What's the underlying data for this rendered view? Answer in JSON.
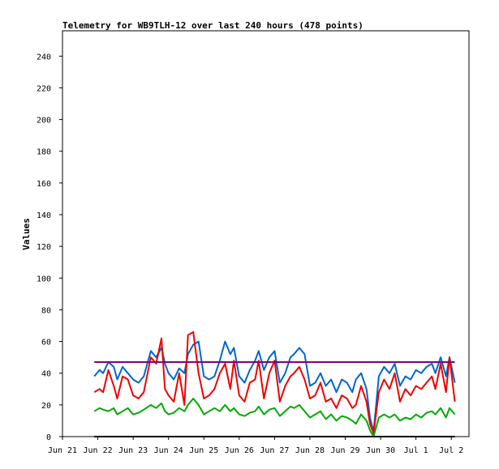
{
  "chart_data": {
    "type": "line",
    "title": "Telemetry for WB9TLH-12 over last 240 hours (478 points)",
    "xlabel": "",
    "ylabel": "Values",
    "x_ticks": [
      "Jun 21",
      "Jun 22",
      "Jun 23",
      "Jun 24",
      "Jun 25",
      "Jun 26",
      "Jun 27",
      "Jun 28",
      "Jun 29",
      "Jun 30",
      "Jul 1",
      "Jul 2"
    ],
    "y_ticks": [
      "0",
      "20",
      "40",
      "60",
      "80",
      "100",
      "120",
      "140",
      "160",
      "180",
      "200",
      "220",
      "240"
    ],
    "xlim_days": [
      0,
      11.5
    ],
    "ylim": [
      0,
      256
    ],
    "grid": false,
    "legend": "none",
    "series": [
      {
        "color": "#0066cc",
        "x": [
          0.9,
          1.05,
          1.15,
          1.3,
          1.45,
          1.55,
          1.7,
          1.85,
          2.0,
          2.15,
          2.3,
          2.5,
          2.65,
          2.8,
          2.9,
          3.0,
          3.15,
          3.3,
          3.45,
          3.55,
          3.7,
          3.85,
          4.0,
          4.15,
          4.3,
          4.45,
          4.6,
          4.75,
          4.85,
          5.0,
          5.15,
          5.3,
          5.45,
          5.55,
          5.7,
          5.85,
          6.0,
          6.15,
          6.3,
          6.45,
          6.55,
          6.7,
          6.85,
          7.0,
          7.15,
          7.3,
          7.45,
          7.6,
          7.75,
          7.9,
          8.05,
          8.2,
          8.3,
          8.45,
          8.6,
          8.7,
          8.8,
          8.95,
          9.1,
          9.25,
          9.4,
          9.55,
          9.7,
          9.85,
          10.0,
          10.15,
          10.3,
          10.45,
          10.55,
          10.7,
          10.85,
          10.95,
          11.1
        ],
        "values": [
          38,
          42,
          40,
          47,
          44,
          36,
          44,
          40,
          36,
          34,
          38,
          54,
          50,
          56,
          46,
          40,
          36,
          43,
          40,
          52,
          58,
          60,
          38,
          36,
          38,
          48,
          60,
          52,
          56,
          38,
          34,
          42,
          48,
          54,
          42,
          50,
          54,
          34,
          40,
          50,
          52,
          56,
          52,
          32,
          34,
          40,
          32,
          36,
          28,
          36,
          34,
          28,
          36,
          40,
          30,
          12,
          3,
          38,
          44,
          40,
          46,
          32,
          38,
          36,
          42,
          40,
          44,
          46,
          40,
          50,
          38,
          50,
          34
        ]
      },
      {
        "color": "#ee0000",
        "x": [
          0.9,
          1.05,
          1.15,
          1.3,
          1.45,
          1.55,
          1.7,
          1.85,
          2.0,
          2.15,
          2.3,
          2.5,
          2.65,
          2.8,
          2.9,
          3.0,
          3.15,
          3.3,
          3.45,
          3.55,
          3.7,
          3.85,
          4.0,
          4.15,
          4.3,
          4.45,
          4.6,
          4.75,
          4.85,
          5.0,
          5.15,
          5.3,
          5.45,
          5.55,
          5.7,
          5.85,
          6.0,
          6.15,
          6.3,
          6.45,
          6.55,
          6.7,
          6.85,
          7.0,
          7.15,
          7.3,
          7.45,
          7.6,
          7.75,
          7.9,
          8.05,
          8.2,
          8.3,
          8.45,
          8.6,
          8.7,
          8.8,
          8.95,
          9.1,
          9.25,
          9.4,
          9.55,
          9.7,
          9.85,
          10.0,
          10.15,
          10.3,
          10.45,
          10.55,
          10.7,
          10.85,
          10.95,
          11.1
        ],
        "values": [
          28,
          30,
          28,
          42,
          32,
          24,
          38,
          36,
          26,
          24,
          28,
          50,
          46,
          62,
          30,
          26,
          22,
          40,
          20,
          64,
          66,
          40,
          24,
          26,
          30,
          40,
          46,
          30,
          48,
          26,
          22,
          34,
          36,
          48,
          24,
          40,
          48,
          22,
          32,
          38,
          40,
          44,
          36,
          24,
          26,
          34,
          22,
          24,
          18,
          26,
          24,
          18,
          20,
          32,
          22,
          8,
          2,
          28,
          36,
          30,
          40,
          22,
          30,
          26,
          32,
          30,
          34,
          38,
          30,
          46,
          28,
          50,
          22
        ]
      },
      {
        "color": "#00aa00",
        "x": [
          0.9,
          1.05,
          1.15,
          1.3,
          1.45,
          1.55,
          1.7,
          1.85,
          2.0,
          2.15,
          2.3,
          2.5,
          2.65,
          2.8,
          2.9,
          3.0,
          3.15,
          3.3,
          3.45,
          3.55,
          3.7,
          3.85,
          4.0,
          4.15,
          4.3,
          4.45,
          4.6,
          4.75,
          4.85,
          5.0,
          5.15,
          5.3,
          5.45,
          5.55,
          5.7,
          5.85,
          6.0,
          6.15,
          6.3,
          6.45,
          6.55,
          6.7,
          6.85,
          7.0,
          7.15,
          7.3,
          7.45,
          7.6,
          7.75,
          7.9,
          8.05,
          8.2,
          8.3,
          8.45,
          8.6,
          8.7,
          8.8,
          8.95,
          9.1,
          9.25,
          9.4,
          9.55,
          9.7,
          9.85,
          10.0,
          10.15,
          10.3,
          10.45,
          10.55,
          10.7,
          10.85,
          10.95,
          11.1
        ],
        "values": [
          16,
          18,
          17,
          16,
          18,
          14,
          16,
          18,
          14,
          15,
          17,
          20,
          18,
          21,
          16,
          14,
          15,
          18,
          16,
          20,
          24,
          20,
          14,
          16,
          18,
          16,
          20,
          16,
          18,
          14,
          13,
          15,
          16,
          19,
          14,
          17,
          18,
          13,
          16,
          19,
          18,
          20,
          16,
          12,
          14,
          16,
          11,
          14,
          10,
          13,
          12,
          10,
          8,
          14,
          10,
          4,
          0,
          12,
          14,
          12,
          14,
          10,
          12,
          11,
          14,
          12,
          15,
          16,
          14,
          18,
          12,
          18,
          14
        ]
      },
      {
        "color": "#800080",
        "x": [
          0.9,
          11.1
        ],
        "values": [
          47,
          47
        ]
      },
      {
        "color": "#000000",
        "x": [
          0.9,
          11.1
        ],
        "values": [
          0,
          0
        ]
      }
    ]
  }
}
